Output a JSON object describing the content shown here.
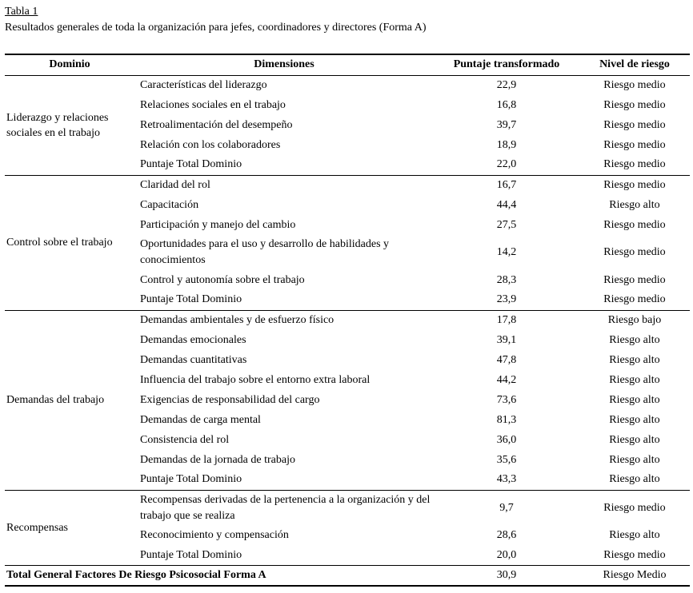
{
  "title": "Tabla 1",
  "subtitle": "Resultados generales de toda la organización para jefes, coordinadores y directores (Forma A)",
  "table": {
    "headers": [
      "Dominio",
      "Dimensiones",
      "Puntaje transformado",
      "Nivel de riesgo"
    ],
    "sections": [
      {
        "domain": "Liderazgo y relaciones sociales en el trabajo",
        "rows": [
          {
            "dimension": "Características del liderazgo",
            "score": "22,9",
            "risk": "Riesgo medio"
          },
          {
            "dimension": "Relaciones sociales en el trabajo",
            "score": "16,8",
            "risk": "Riesgo medio"
          },
          {
            "dimension": "Retroalimentación del desempeño",
            "score": "39,7",
            "risk": "Riesgo medio"
          },
          {
            "dimension": "Relación con los colaboradores",
            "score": "18,9",
            "risk": "Riesgo medio"
          },
          {
            "dimension": "Puntaje Total Dominio",
            "score": "22,0",
            "risk": "Riesgo medio"
          }
        ]
      },
      {
        "domain": "Control sobre el trabajo",
        "rows": [
          {
            "dimension": "Claridad del rol",
            "score": "16,7",
            "risk": "Riesgo medio"
          },
          {
            "dimension": "Capacitación",
            "score": "44,4",
            "risk": "Riesgo alto"
          },
          {
            "dimension": "Participación y manejo del cambio",
            "score": "27,5",
            "risk": "Riesgo medio"
          },
          {
            "dimension": "Oportunidades para el uso y desarrollo de habilidades y conocimientos",
            "score": "14,2",
            "risk": "Riesgo medio"
          },
          {
            "dimension": "Control y autonomía sobre el trabajo",
            "score": "28,3",
            "risk": "Riesgo medio"
          },
          {
            "dimension": "Puntaje Total Dominio",
            "score": "23,9",
            "risk": "Riesgo medio"
          }
        ]
      },
      {
        "domain": "Demandas del trabajo",
        "rows": [
          {
            "dimension": "Demandas ambientales y de esfuerzo físico",
            "score": "17,8",
            "risk": "Riesgo bajo"
          },
          {
            "dimension": "Demandas emocionales",
            "score": "39,1",
            "risk": "Riesgo alto"
          },
          {
            "dimension": "Demandas cuantitativas",
            "score": "47,8",
            "risk": "Riesgo alto"
          },
          {
            "dimension": "Influencia del trabajo sobre el entorno extra laboral",
            "score": "44,2",
            "risk": "Riesgo alto"
          },
          {
            "dimension": "Exigencias de responsabilidad del cargo",
            "score": "73,6",
            "risk": "Riesgo alto"
          },
          {
            "dimension": "Demandas de carga mental",
            "score": "81,3",
            "risk": "Riesgo alto"
          },
          {
            "dimension": "Consistencia del rol",
            "score": "36,0",
            "risk": "Riesgo alto"
          },
          {
            "dimension": "Demandas de la jornada de trabajo",
            "score": "35,6",
            "risk": "Riesgo alto"
          },
          {
            "dimension": "Puntaje Total Dominio",
            "score": "43,3",
            "risk": "Riesgo alto"
          }
        ]
      },
      {
        "domain": "Recompensas",
        "rows": [
          {
            "dimension": "Recompensas derivadas de la pertenencia a la organización y del trabajo que se realiza",
            "score": "9,7",
            "risk": "Riesgo medio"
          },
          {
            "dimension": "Reconocimiento y compensación",
            "score": "28,6",
            "risk": "Riesgo alto"
          },
          {
            "dimension": "Puntaje Total Dominio",
            "score": "20,0",
            "risk": "Riesgo medio"
          }
        ]
      }
    ],
    "total": {
      "label": "Total General Factores De Riesgo Psicosocial Forma A",
      "score": "30,9",
      "risk": "Riesgo Medio"
    }
  }
}
